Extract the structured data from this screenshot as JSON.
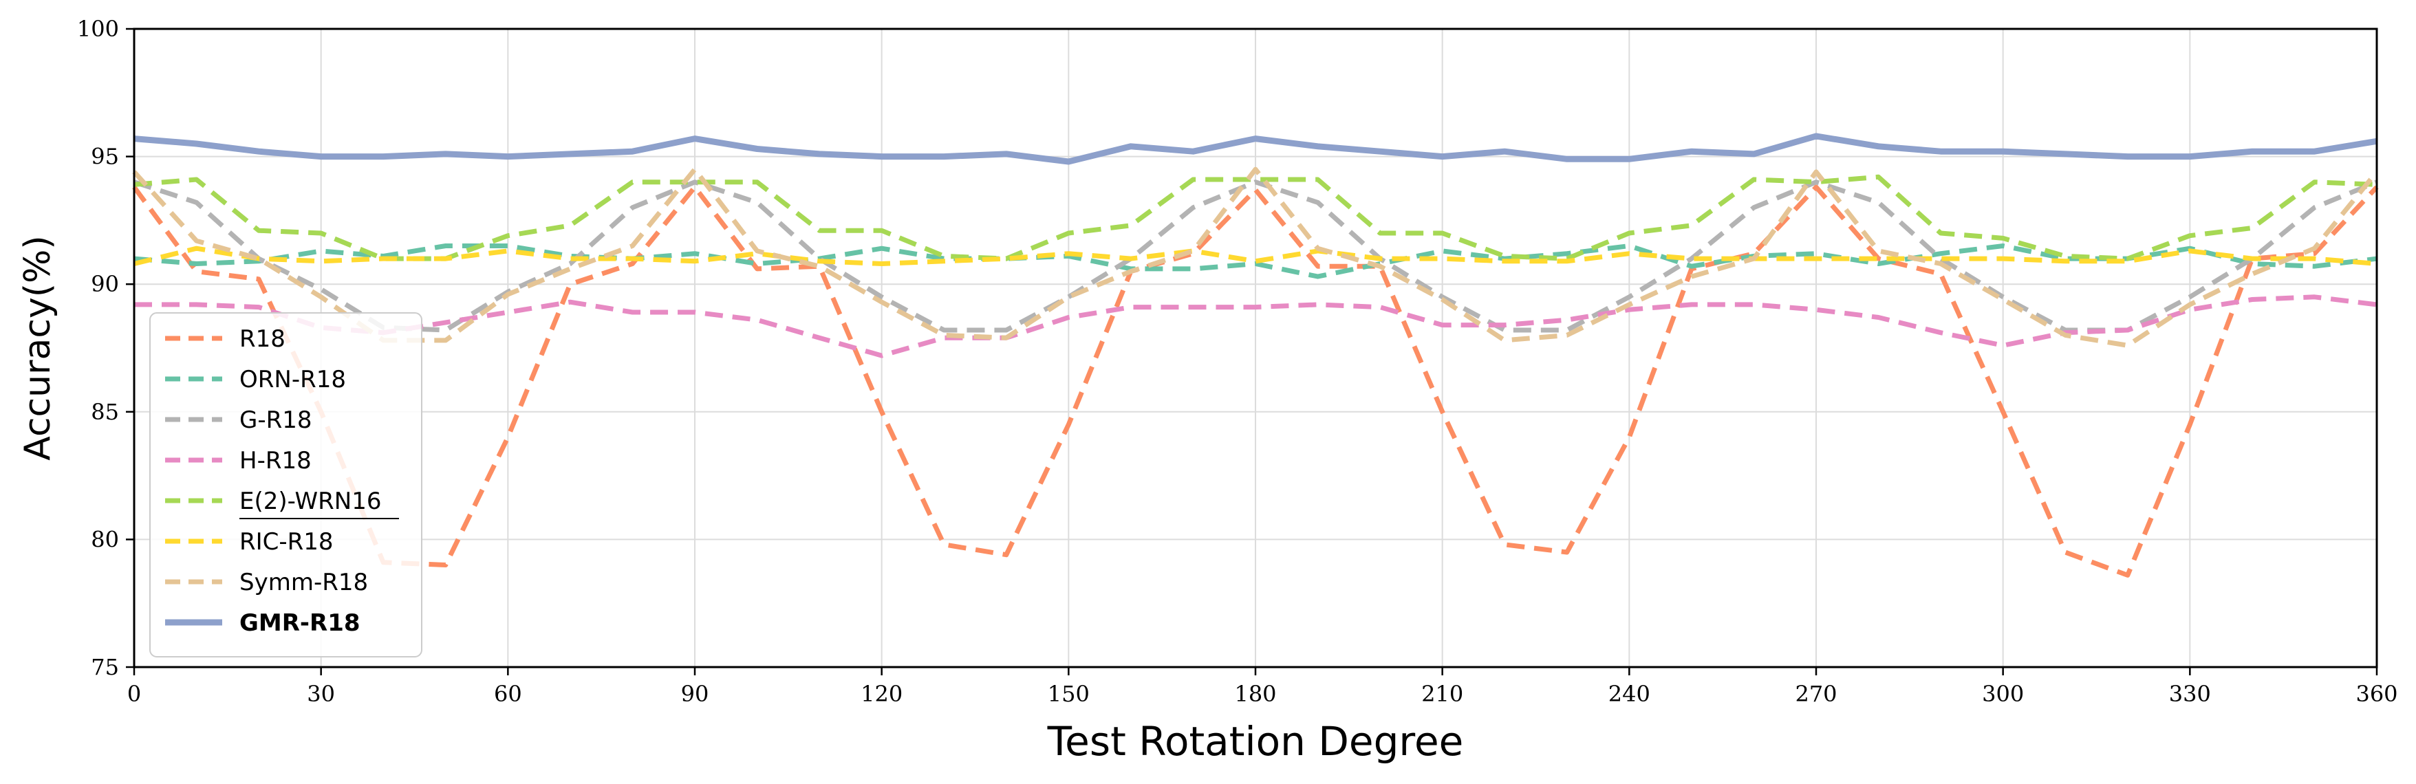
{
  "chart_data": {
    "type": "line",
    "title": "",
    "xlabel": "Test Rotation Degree",
    "ylabel": "Accuracy(%)",
    "xlim": [
      0,
      360
    ],
    "ylim": [
      75,
      100
    ],
    "xticks": [
      0,
      30,
      60,
      90,
      120,
      150,
      180,
      210,
      240,
      270,
      300,
      330,
      360
    ],
    "yticks": [
      75,
      80,
      85,
      90,
      95,
      100
    ],
    "grid": true,
    "legend_position": "left",
    "x": [
      0,
      10,
      20,
      30,
      40,
      50,
      60,
      70,
      80,
      90,
      100,
      110,
      120,
      130,
      140,
      150,
      160,
      170,
      180,
      190,
      200,
      210,
      220,
      230,
      240,
      250,
      260,
      270,
      280,
      290,
      300,
      310,
      320,
      330,
      340,
      350,
      360
    ],
    "series": [
      {
        "name": "R18",
        "color": "#fc8d62",
        "style": "dashed",
        "bold": false,
        "values": [
          93.8,
          90.5,
          90.2,
          85.0,
          79.1,
          79.0,
          84.0,
          90.0,
          90.8,
          93.8,
          90.6,
          90.7,
          85.0,
          79.8,
          79.4,
          84.5,
          90.5,
          91.2,
          93.7,
          90.7,
          90.7,
          85.0,
          79.8,
          79.5,
          84.0,
          90.6,
          91.2,
          93.8,
          91.0,
          90.4,
          85.0,
          79.5,
          78.6,
          84.5,
          91.0,
          91.2,
          93.8
        ]
      },
      {
        "name": "ORN-R18",
        "color": "#66c2a5",
        "style": "dashed",
        "bold": false,
        "values": [
          91.0,
          90.8,
          90.9,
          91.3,
          91.1,
          91.5,
          91.5,
          91.1,
          91.0,
          91.2,
          90.8,
          91.0,
          91.4,
          91.0,
          91.0,
          91.1,
          90.6,
          90.6,
          90.8,
          90.3,
          90.8,
          91.3,
          91.0,
          91.2,
          91.5,
          90.7,
          91.1,
          91.2,
          90.8,
          91.2,
          91.5,
          91.0,
          91.0,
          91.4,
          90.8,
          90.7,
          91.0
        ]
      },
      {
        "name": "G-R18",
        "color": "#b3b3b3",
        "style": "dashed",
        "bold": false,
        "values": [
          94.0,
          93.2,
          91.0,
          89.8,
          88.3,
          88.2,
          89.7,
          90.8,
          93.0,
          94.0,
          93.2,
          91.0,
          89.5,
          88.2,
          88.2,
          89.5,
          91.0,
          93.0,
          94.0,
          93.2,
          91.0,
          89.5,
          88.2,
          88.2,
          89.5,
          91.0,
          93.0,
          94.0,
          93.2,
          91.0,
          89.5,
          88.2,
          88.2,
          89.5,
          91.0,
          93.0,
          94.0
        ]
      },
      {
        "name": "H-R18",
        "color": "#e78ac3",
        "style": "dashed",
        "bold": false,
        "values": [
          89.2,
          89.2,
          89.1,
          88.3,
          88.1,
          88.5,
          88.9,
          89.3,
          88.9,
          88.9,
          88.6,
          87.9,
          87.2,
          87.9,
          87.9,
          88.7,
          89.1,
          89.1,
          89.1,
          89.2,
          89.1,
          88.4,
          88.4,
          88.6,
          89.0,
          89.2,
          89.2,
          89.0,
          88.7,
          88.1,
          87.6,
          88.1,
          88.2,
          89.0,
          89.4,
          89.5,
          89.2
        ]
      },
      {
        "name": "E(2)-WRN16",
        "color": "#a6d854",
        "style": "dashed",
        "bold": false,
        "values": [
          93.9,
          94.1,
          92.1,
          92.0,
          91.0,
          91.0,
          91.9,
          92.3,
          94.0,
          94.0,
          94.0,
          92.1,
          92.1,
          91.1,
          91.0,
          92.0,
          92.3,
          94.1,
          94.1,
          94.1,
          92.0,
          92.0,
          91.1,
          91.0,
          92.0,
          92.3,
          94.1,
          94.0,
          94.2,
          92.0,
          91.8,
          91.1,
          91.0,
          91.9,
          92.2,
          94.0,
          93.9
        ]
      },
      {
        "name": "RIC-R18",
        "color": "#ffd92f",
        "style": "dashed",
        "bold": false,
        "values": [
          90.8,
          91.4,
          91.0,
          90.9,
          91.0,
          91.0,
          91.3,
          91.0,
          91.0,
          90.9,
          91.2,
          90.9,
          90.8,
          90.9,
          91.0,
          91.2,
          91.0,
          91.3,
          90.9,
          91.3,
          91.0,
          91.0,
          90.9,
          90.9,
          91.2,
          91.0,
          91.0,
          91.0,
          91.0,
          91.0,
          91.0,
          90.9,
          90.9,
          91.3,
          91.0,
          91.0,
          90.8
        ]
      },
      {
        "name": "Symm-R18",
        "color": "#e5c494",
        "style": "dashed",
        "bold": false,
        "values": [
          94.4,
          91.7,
          91.0,
          89.5,
          87.8,
          87.8,
          89.6,
          90.6,
          91.5,
          94.5,
          91.3,
          90.7,
          89.3,
          88.0,
          87.9,
          89.5,
          90.5,
          91.3,
          94.5,
          91.4,
          90.7,
          89.4,
          87.8,
          88.0,
          89.2,
          90.3,
          91.0,
          94.4,
          91.3,
          90.8,
          89.4,
          88.0,
          87.6,
          89.2,
          90.4,
          91.4,
          94.4
        ]
      },
      {
        "name": "GMR-R18",
        "color": "#8da0cb",
        "style": "solid",
        "bold": true,
        "values": [
          95.7,
          95.5,
          95.2,
          95.0,
          95.0,
          95.1,
          95.0,
          95.1,
          95.2,
          95.7,
          95.3,
          95.1,
          95.0,
          95.0,
          95.1,
          94.8,
          95.4,
          95.2,
          95.7,
          95.4,
          95.2,
          95.0,
          95.2,
          94.9,
          94.9,
          95.2,
          95.1,
          95.8,
          95.4,
          95.2,
          95.2,
          95.1,
          95.0,
          95.0,
          95.2,
          95.2,
          95.6
        ]
      }
    ]
  }
}
